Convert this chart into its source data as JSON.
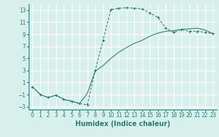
{
  "curve1_x": [
    0,
    1,
    2,
    3,
    4,
    5,
    6,
    7,
    8,
    9,
    10,
    11,
    12,
    13,
    14,
    15,
    16,
    17,
    18,
    19,
    20,
    21,
    22,
    23
  ],
  "curve1_y": [
    0.3,
    -1.0,
    -1.5,
    -1.1,
    -1.8,
    -2.1,
    -2.5,
    -2.7,
    3.0,
    8.0,
    13.1,
    13.3,
    13.4,
    13.3,
    13.2,
    12.5,
    11.8,
    10.0,
    9.3,
    9.8,
    9.5,
    9.5,
    9.3,
    9.1
  ],
  "curve2_x": [
    0,
    1,
    2,
    3,
    4,
    5,
    6,
    7,
    8,
    9,
    10,
    11,
    12,
    13,
    14,
    15,
    16,
    17,
    18,
    19,
    20,
    21,
    22,
    23
  ],
  "curve2_y": [
    0.3,
    -1.0,
    -1.5,
    -1.1,
    -1.8,
    -2.1,
    -2.5,
    -0.8,
    2.9,
    3.8,
    5.0,
    6.0,
    6.8,
    7.5,
    8.0,
    8.7,
    9.2,
    9.5,
    9.6,
    9.8,
    9.9,
    10.0,
    9.7,
    9.1
  ],
  "color": "#2d7a72",
  "bg_color": "#d8f0ec",
  "grid_color": "#ffffff",
  "xlabel": "Humidex (Indice chaleur)",
  "xlim": [
    -0.5,
    23.5
  ],
  "ylim": [
    -3.5,
    14.0
  ],
  "xticks": [
    0,
    1,
    2,
    3,
    4,
    5,
    6,
    7,
    8,
    9,
    10,
    11,
    12,
    13,
    14,
    15,
    16,
    17,
    18,
    19,
    20,
    21,
    22,
    23
  ],
  "yticks": [
    -3,
    -1,
    1,
    3,
    5,
    7,
    9,
    11,
    13
  ],
  "tick_fontsize": 5.5,
  "label_fontsize": 7.0
}
